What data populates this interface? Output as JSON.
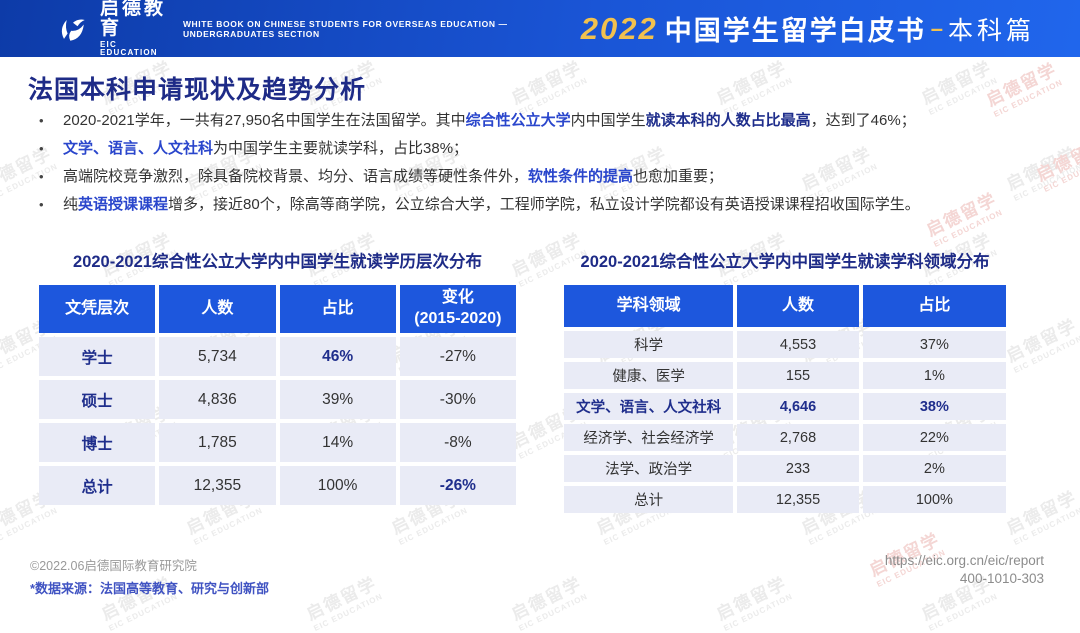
{
  "header": {
    "logo_cn": "启德教育",
    "logo_en": "EIC EDUCATION",
    "subtitle": "WHITE BOOK ON CHINESE STUDENTS FOR OVERSEAS EDUCATION — UNDERGRADUATES SECTION",
    "year": "2022",
    "title_cn": "中国学生留学白皮书",
    "dash": "–",
    "edition": "本科篇"
  },
  "page": {
    "title": "法国本科申请现状及趋势分析"
  },
  "bullets": [
    {
      "segments": [
        {
          "text": "2020-2021学年，一共有27,950名中国学生在法国留学。其中",
          "cls": ""
        },
        {
          "text": "综合性公立大学",
          "cls": "seg-b"
        },
        {
          "text": "内中国学生",
          "cls": ""
        },
        {
          "text": "就读本科的人数占比最高",
          "cls": "seg-n"
        },
        {
          "text": "，达到了46%；",
          "cls": ""
        }
      ]
    },
    {
      "segments": [
        {
          "text": "文学、语言、人文社科",
          "cls": "seg-b"
        },
        {
          "text": "为中国学生主要就读学科，占比38%；",
          "cls": ""
        }
      ]
    },
    {
      "segments": [
        {
          "text": "高端院校竞争激烈，除具备院校背景、均分、语言成绩等硬性条件外，",
          "cls": ""
        },
        {
          "text": "软性条件的提高",
          "cls": "seg-b"
        },
        {
          "text": "也愈加重要；",
          "cls": ""
        }
      ]
    },
    {
      "segments": [
        {
          "text": "纯",
          "cls": ""
        },
        {
          "text": "英语授课课程",
          "cls": "seg-b"
        },
        {
          "text": "增多，接近80个，除高等商学院，公立综合大学，工程师学院，私立设计学院都设有英语授课课程招收国际学生。",
          "cls": ""
        }
      ]
    }
  ],
  "left_table": {
    "title": "2020-2021综合性公立大学内中国学生就读学历层次分布",
    "headers": [
      "文凭层次",
      "人数",
      "占比",
      "变化\n(2015-2020)"
    ],
    "rows": [
      {
        "cells": [
          "学士",
          "5,734",
          "46%",
          "-27%"
        ],
        "strong": [
          true,
          false,
          true,
          false
        ]
      },
      {
        "cells": [
          "硕士",
          "4,836",
          "39%",
          "-30%"
        ],
        "strong": [
          true,
          false,
          false,
          false
        ]
      },
      {
        "cells": [
          "博士",
          "1,785",
          "14%",
          "-8%"
        ],
        "strong": [
          true,
          false,
          false,
          false
        ]
      },
      {
        "cells": [
          "总计",
          "12,355",
          "100%",
          "-26%"
        ],
        "strong": [
          true,
          false,
          false,
          true
        ]
      }
    ]
  },
  "right_table": {
    "title": "2020-2021综合性公立大学内中国学生就读学科领域分布",
    "headers": [
      "学科领域",
      "人数",
      "占比"
    ],
    "rows": [
      {
        "cells": [
          "科学",
          "4,553",
          "37%"
        ],
        "strong": [
          false,
          false,
          false
        ]
      },
      {
        "cells": [
          "健康、医学",
          "155",
          "1%"
        ],
        "strong": [
          false,
          false,
          false
        ]
      },
      {
        "cells": [
          "文学、语言、人文社科",
          "4,646",
          "38%"
        ],
        "strong": [
          true,
          true,
          true
        ]
      },
      {
        "cells": [
          "经济学、社会经济学",
          "2,768",
          "22%"
        ],
        "strong": [
          false,
          false,
          false
        ]
      },
      {
        "cells": [
          "法学、政治学",
          "233",
          "2%"
        ],
        "strong": [
          false,
          false,
          false
        ]
      },
      {
        "cells": [
          "总计",
          "12,355",
          "100%"
        ],
        "strong": [
          false,
          false,
          false
        ]
      }
    ]
  },
  "chart_data": [
    {
      "type": "table",
      "title": "2020-2021综合性公立大学内中国学生就读学历层次分布",
      "columns": [
        "文凭层次",
        "人数",
        "占比",
        "变化(2015-2020)"
      ],
      "rows": [
        [
          "学士",
          5734,
          "46%",
          "-27%"
        ],
        [
          "硕士",
          4836,
          "39%",
          "-30%"
        ],
        [
          "博士",
          1785,
          "14%",
          "-8%"
        ],
        [
          "总计",
          12355,
          "100%",
          "-26%"
        ]
      ]
    },
    {
      "type": "table",
      "title": "2020-2021综合性公立大学内中国学生就读学科领域分布",
      "columns": [
        "学科领域",
        "人数",
        "占比"
      ],
      "rows": [
        [
          "科学",
          4553,
          "37%"
        ],
        [
          "健康、医学",
          155,
          "1%"
        ],
        [
          "文学、语言、人文社科",
          4646,
          "38%"
        ],
        [
          "经济学、社会经济学",
          2768,
          "22%"
        ],
        [
          "法学、政治学",
          233,
          "2%"
        ],
        [
          "总计",
          12355,
          "100%"
        ]
      ]
    }
  ],
  "footer": {
    "copyright": "©2022.06启德国际教育研究院",
    "source": "*数据来源：法国高等教育、研究与创新部",
    "url": "https://eic.org.cn/eic/report",
    "phone": "400-1010-303"
  },
  "watermark": {
    "cn": "启德留学",
    "en": "EIC EDUCATION"
  },
  "colors": {
    "header_blue_dark": "#0d3ba8",
    "header_blue_light": "#2066ec",
    "table_header_blue": "#1d57dd",
    "row_lavender": "#e9ebf6",
    "navy": "#1f2e8c",
    "highlight_blue": "#2a46cc",
    "accent_yellow": "#f2c14e",
    "source_blue": "#4053c2"
  }
}
